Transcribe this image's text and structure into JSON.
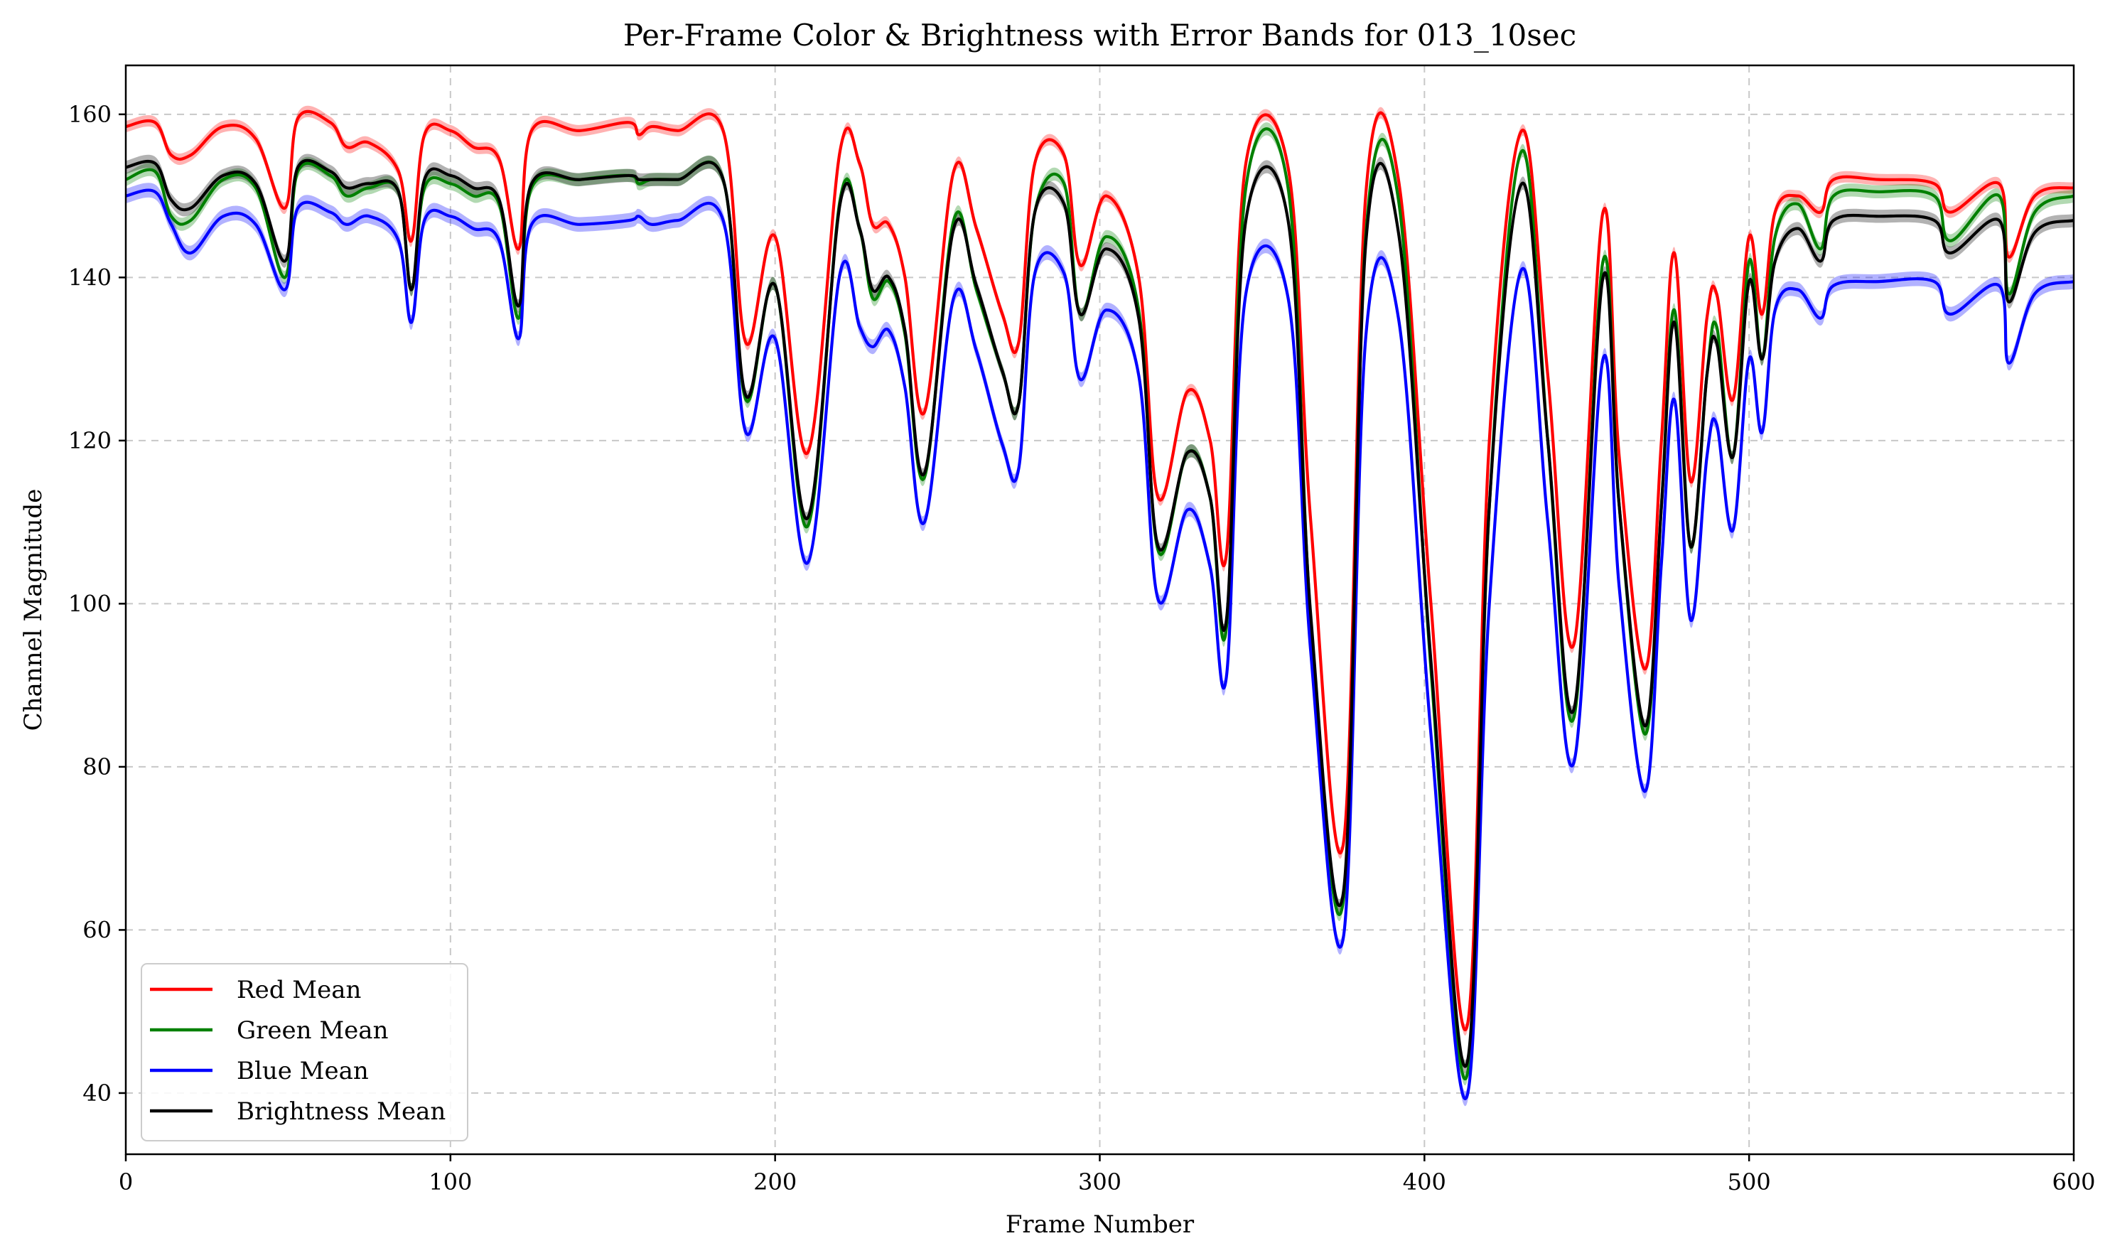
{
  "chart_data": {
    "type": "line",
    "title": "Per-Frame Color & Brightness with Error Bands for 013_10sec",
    "xlabel": "Frame Number",
    "ylabel": "Channel Magnitude",
    "xlim": [
      0,
      600
    ],
    "ylim": [
      32.5,
      166
    ],
    "xticks": [
      0,
      100,
      200,
      300,
      400,
      500,
      600
    ],
    "yticks": [
      40,
      60,
      80,
      100,
      120,
      140,
      160
    ],
    "grid": true,
    "legend_position": "lower-left",
    "x": [
      0,
      9,
      14,
      20,
      30,
      40,
      49,
      53,
      63,
      68,
      75,
      84,
      88,
      92,
      100,
      107,
      115,
      121,
      125,
      140,
      155,
      158,
      162,
      170,
      184,
      191,
      200,
      210,
      220,
      226,
      230,
      235,
      240,
      246,
      255,
      262,
      270,
      275,
      280,
      289,
      294,
      302,
      312,
      318,
      327,
      334,
      339,
      345,
      358,
      365,
      375,
      382,
      392,
      402,
      413,
      420,
      430,
      438,
      446,
      455,
      460,
      468,
      473,
      477,
      482,
      487,
      490,
      495,
      500,
      504,
      508,
      515,
      522,
      526,
      540,
      557,
      562,
      577,
      580,
      588,
      600
    ],
    "series": [
      {
        "name": "Red Mean",
        "color": "#ff0000",
        "band_halfwidth": 0.7,
        "values": [
          158.5,
          159,
          155,
          155,
          158.5,
          157,
          148.5,
          159.5,
          159,
          156,
          156.5,
          153,
          144.5,
          157.5,
          158,
          156,
          154.5,
          143.5,
          158,
          158,
          159,
          157.5,
          158.5,
          158,
          158,
          132,
          145,
          118.5,
          155.5,
          154,
          146.5,
          146.5,
          140,
          123.5,
          153,
          146,
          135.5,
          132,
          154,
          155,
          141.5,
          150,
          140,
          113,
          126,
          120,
          106,
          154,
          153.5,
          110,
          70.5,
          150.5,
          152,
          100,
          48,
          120,
          158,
          128,
          95,
          148,
          118,
          92,
          120,
          143,
          115,
          135,
          138,
          125,
          145,
          135.5,
          148,
          150,
          148,
          152,
          152,
          151.5,
          148,
          151.5,
          142.5,
          150,
          151
        ]
      },
      {
        "name": "Green Mean",
        "color": "#008000",
        "band_halfwidth": 0.8,
        "values": [
          152,
          153,
          147.5,
          147,
          152,
          151,
          140,
          153,
          152.5,
          150,
          151,
          150.5,
          138.5,
          151,
          151.5,
          150,
          149,
          135,
          151,
          152,
          152.5,
          151.5,
          152,
          152,
          152,
          125,
          139,
          109.5,
          149.5,
          146,
          137.5,
          139.5,
          133,
          115.5,
          147,
          138.5,
          128.5,
          124.5,
          148,
          151.5,
          135.5,
          145,
          136,
          106.5,
          118.5,
          113,
          97,
          151,
          151,
          98,
          63.5,
          145.5,
          149.5,
          92,
          42,
          112,
          155.5,
          120,
          86,
          142,
          112,
          84,
          112,
          136,
          107,
          128,
          134,
          118,
          142,
          130,
          145,
          149,
          143.5,
          150,
          150.5,
          150,
          144.5,
          150,
          138,
          148,
          150
        ]
      },
      {
        "name": "Blue Mean",
        "color": "#0000ff",
        "band_halfwidth": 0.9,
        "values": [
          150,
          150.5,
          146.5,
          143,
          147.5,
          146.5,
          138.5,
          148.5,
          148,
          146.5,
          147.5,
          144.5,
          134.5,
          147,
          147.5,
          146,
          144.5,
          132.5,
          146.5,
          146.5,
          147,
          147.5,
          146.5,
          147,
          147,
          121,
          132.5,
          105,
          140.5,
          134,
          131.5,
          133.5,
          126.5,
          110,
          137.5,
          131,
          119.5,
          116.5,
          140.5,
          140.5,
          127.5,
          136,
          128,
          100.5,
          111.5,
          104.5,
          91,
          138,
          137.5,
          94,
          59,
          133,
          135,
          84,
          39.5,
          100,
          141,
          110,
          80.5,
          130,
          102,
          77,
          105,
          125,
          98,
          118,
          122,
          109,
          130,
          121,
          136,
          138.5,
          135,
          139,
          139.5,
          139.5,
          135.5,
          139,
          129.5,
          138,
          139.5
        ]
      },
      {
        "name": "Brightness Mean",
        "color": "#000000",
        "band_halfwidth": 0.8,
        "values": [
          153.5,
          154,
          149.5,
          148.5,
          152.5,
          151.5,
          142,
          153.5,
          153,
          151,
          151.5,
          150.5,
          138.5,
          152,
          152.5,
          151,
          149.5,
          136.5,
          151.5,
          152,
          152.5,
          152,
          152,
          152,
          152,
          125.5,
          139,
          110.5,
          149,
          146,
          138.5,
          140,
          133.5,
          116,
          146,
          139,
          128.5,
          124.5,
          148,
          149,
          135.5,
          143.5,
          135,
          107,
          118.5,
          113,
          98,
          147,
          147,
          98.5,
          64.5,
          144.5,
          145.5,
          93,
          43.5,
          112,
          151.5,
          120,
          87,
          140,
          112,
          85,
          112,
          134.5,
          107,
          128,
          132,
          118,
          139.5,
          130,
          142,
          146,
          142,
          147,
          147.5,
          147,
          143,
          147,
          137,
          145.5,
          147
        ]
      }
    ]
  }
}
